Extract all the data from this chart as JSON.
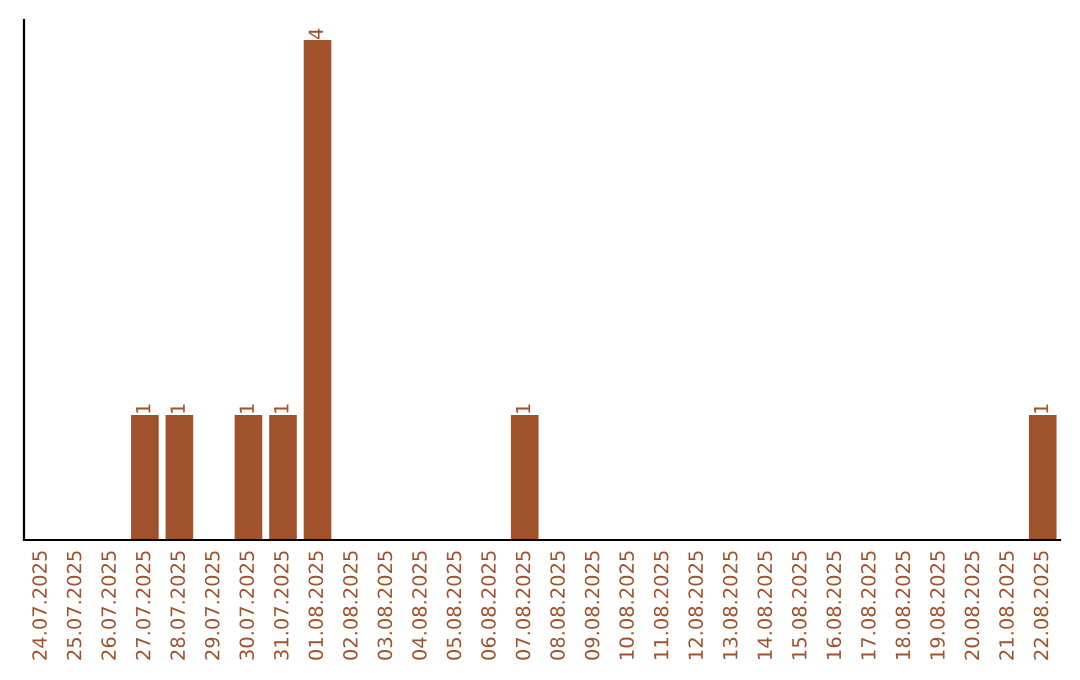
{
  "chart_data": {
    "type": "bar",
    "categories": [
      "24.07.2025",
      "25.07.2025",
      "26.07.2025",
      "27.07.2025",
      "28.07.2025",
      "29.07.2025",
      "30.07.2025",
      "31.07.2025",
      "01.08.2025",
      "02.08.2025",
      "03.08.2025",
      "04.08.2025",
      "05.08.2025",
      "06.08.2025",
      "07.08.2025",
      "08.08.2025",
      "09.08.2025",
      "10.08.2025",
      "11.08.2025",
      "12.08.2025",
      "13.08.2025",
      "14.08.2025",
      "15.08.2025",
      "16.08.2025",
      "17.08.2025",
      "18.08.2025",
      "19.08.2025",
      "20.08.2025",
      "21.08.2025",
      "22.08.2025"
    ],
    "values": [
      0,
      0,
      0,
      1,
      1,
      0,
      1,
      1,
      4,
      0,
      0,
      0,
      0,
      0,
      1,
      0,
      0,
      0,
      0,
      0,
      0,
      0,
      0,
      0,
      0,
      0,
      0,
      0,
      0,
      1
    ],
    "color": "#a0522d",
    "value_labels": [
      null,
      null,
      null,
      "1",
      "1",
      null,
      "1",
      "1",
      "4",
      null,
      null,
      null,
      null,
      null,
      "1",
      null,
      null,
      null,
      null,
      null,
      null,
      null,
      null,
      null,
      null,
      null,
      null,
      null,
      null,
      "1"
    ],
    "tick_labels": "x",
    "grid": false
  }
}
